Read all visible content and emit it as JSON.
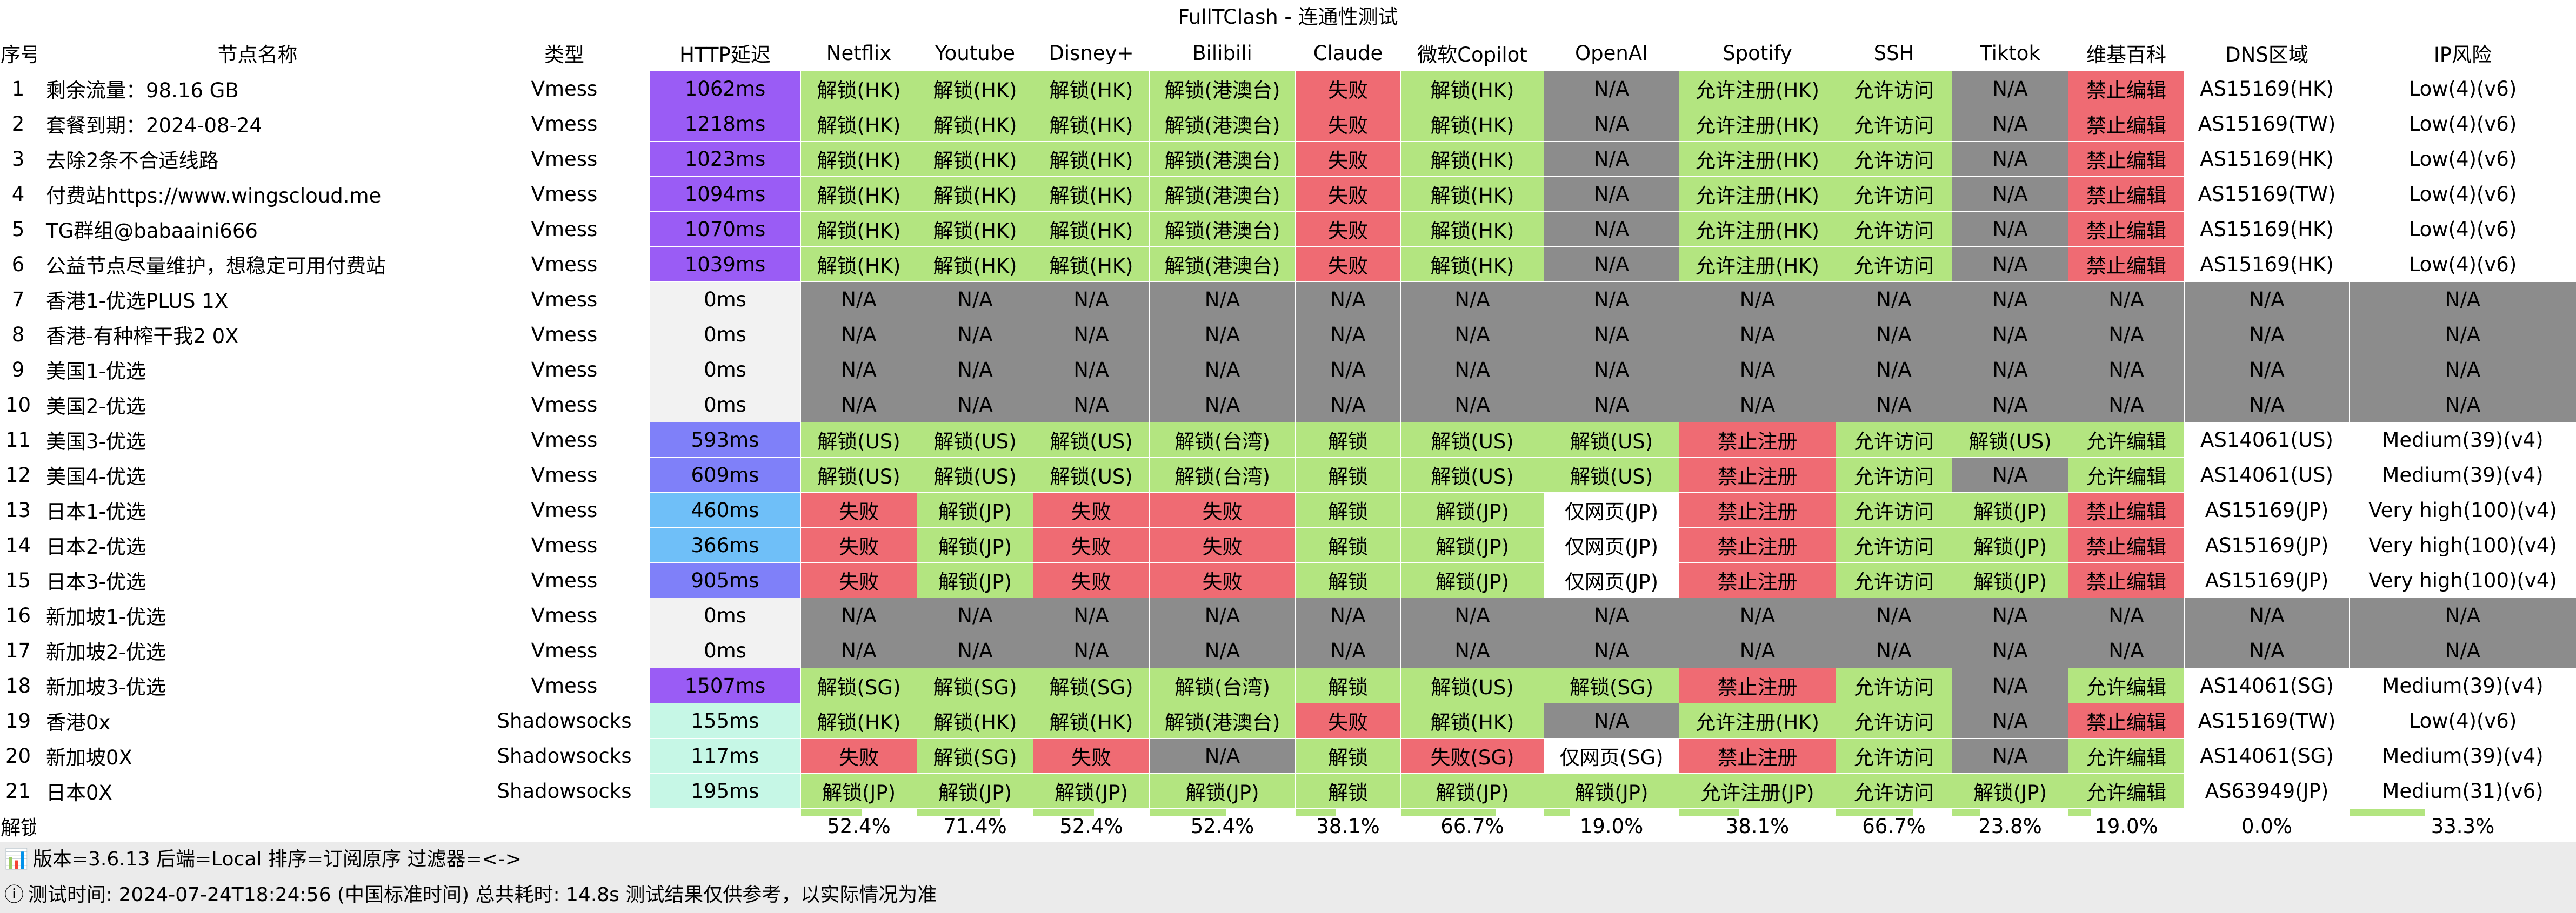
{
  "title": "FullTClash - 连通性测试",
  "headers": [
    "序号",
    "节点名称",
    "类型",
    "HTTP延迟",
    "Netflix",
    "Youtube",
    "Disney+",
    "Bilibili",
    "Claude",
    "微软Copilot",
    "OpenAI",
    "Spotify",
    "SSH",
    "Tiktok",
    "维基百科",
    "DNS区域",
    "IP风险"
  ],
  "rows": [
    [
      "1",
      "剩余流量：98.16 GB",
      "Vmess",
      "1062ms",
      "解锁(HK)",
      "解锁(HK)",
      "解锁(HK)",
      "解锁(港澳台)",
      "失败",
      "解锁(HK)",
      "N/A",
      "允许注册(HK)",
      "允许访问",
      "N/A",
      "禁止编辑",
      "AS15169(HK)",
      "Low(4)(v6)"
    ],
    [
      "2",
      "套餐到期：2024-08-24",
      "Vmess",
      "1218ms",
      "解锁(HK)",
      "解锁(HK)",
      "解锁(HK)",
      "解锁(港澳台)",
      "失败",
      "解锁(HK)",
      "N/A",
      "允许注册(HK)",
      "允许访问",
      "N/A",
      "禁止编辑",
      "AS15169(TW)",
      "Low(4)(v6)"
    ],
    [
      "3",
      "去除2条不合适线路",
      "Vmess",
      "1023ms",
      "解锁(HK)",
      "解锁(HK)",
      "解锁(HK)",
      "解锁(港澳台)",
      "失败",
      "解锁(HK)",
      "N/A",
      "允许注册(HK)",
      "允许访问",
      "N/A",
      "禁止编辑",
      "AS15169(HK)",
      "Low(4)(v6)"
    ],
    [
      "4",
      "付费站https://www.wingscloud.me",
      "Vmess",
      "1094ms",
      "解锁(HK)",
      "解锁(HK)",
      "解锁(HK)",
      "解锁(港澳台)",
      "失败",
      "解锁(HK)",
      "N/A",
      "允许注册(HK)",
      "允许访问",
      "N/A",
      "禁止编辑",
      "AS15169(TW)",
      "Low(4)(v6)"
    ],
    [
      "5",
      "TG群组@babaaini666",
      "Vmess",
      "1070ms",
      "解锁(HK)",
      "解锁(HK)",
      "解锁(HK)",
      "解锁(港澳台)",
      "失败",
      "解锁(HK)",
      "N/A",
      "允许注册(HK)",
      "允许访问",
      "N/A",
      "禁止编辑",
      "AS15169(HK)",
      "Low(4)(v6)"
    ],
    [
      "6",
      "公益节点尽量维护，想稳定可用付费站",
      "Vmess",
      "1039ms",
      "解锁(HK)",
      "解锁(HK)",
      "解锁(HK)",
      "解锁(港澳台)",
      "失败",
      "解锁(HK)",
      "N/A",
      "允许注册(HK)",
      "允许访问",
      "N/A",
      "禁止编辑",
      "AS15169(HK)",
      "Low(4)(v6)"
    ],
    [
      "7",
      "香港1-优选PLUS 1X",
      "Vmess",
      "0ms",
      "N/A",
      "N/A",
      "N/A",
      "N/A",
      "N/A",
      "N/A",
      "N/A",
      "N/A",
      "N/A",
      "N/A",
      "N/A",
      "N/A",
      "N/A"
    ],
    [
      "8",
      "香港-有种榨干我2 0X",
      "Vmess",
      "0ms",
      "N/A",
      "N/A",
      "N/A",
      "N/A",
      "N/A",
      "N/A",
      "N/A",
      "N/A",
      "N/A",
      "N/A",
      "N/A",
      "N/A",
      "N/A"
    ],
    [
      "9",
      "美国1-优选",
      "Vmess",
      "0ms",
      "N/A",
      "N/A",
      "N/A",
      "N/A",
      "N/A",
      "N/A",
      "N/A",
      "N/A",
      "N/A",
      "N/A",
      "N/A",
      "N/A",
      "N/A"
    ],
    [
      "10",
      "美国2-优选",
      "Vmess",
      "0ms",
      "N/A",
      "N/A",
      "N/A",
      "N/A",
      "N/A",
      "N/A",
      "N/A",
      "N/A",
      "N/A",
      "N/A",
      "N/A",
      "N/A",
      "N/A"
    ],
    [
      "11",
      "美国3-优选",
      "Vmess",
      "593ms",
      "解锁(US)",
      "解锁(US)",
      "解锁(US)",
      "解锁(台湾)",
      "解锁",
      "解锁(US)",
      "解锁(US)",
      "禁止注册",
      "允许访问",
      "解锁(US)",
      "允许编辑",
      "AS14061(US)",
      "Medium(39)(v4)"
    ],
    [
      "12",
      "美国4-优选",
      "Vmess",
      "609ms",
      "解锁(US)",
      "解锁(US)",
      "解锁(US)",
      "解锁(台湾)",
      "解锁",
      "解锁(US)",
      "解锁(US)",
      "禁止注册",
      "允许访问",
      "N/A",
      "允许编辑",
      "AS14061(US)",
      "Medium(39)(v4)"
    ],
    [
      "13",
      "日本1-优选",
      "Vmess",
      "460ms",
      "失败",
      "解锁(JP)",
      "失败",
      "失败",
      "解锁",
      "解锁(JP)",
      "仅网页(JP)",
      "禁止注册",
      "允许访问",
      "解锁(JP)",
      "禁止编辑",
      "AS15169(JP)",
      "Very high(100)(v4)"
    ],
    [
      "14",
      "日本2-优选",
      "Vmess",
      "366ms",
      "失败",
      "解锁(JP)",
      "失败",
      "失败",
      "解锁",
      "解锁(JP)",
      "仅网页(JP)",
      "禁止注册",
      "允许访问",
      "解锁(JP)",
      "禁止编辑",
      "AS15169(JP)",
      "Very high(100)(v4)"
    ],
    [
      "15",
      "日本3-优选",
      "Vmess",
      "905ms",
      "失败",
      "解锁(JP)",
      "失败",
      "失败",
      "解锁",
      "解锁(JP)",
      "仅网页(JP)",
      "禁止注册",
      "允许访问",
      "解锁(JP)",
      "禁止编辑",
      "AS15169(JP)",
      "Very high(100)(v4)"
    ],
    [
      "16",
      "新加坡1-优选",
      "Vmess",
      "0ms",
      "N/A",
      "N/A",
      "N/A",
      "N/A",
      "N/A",
      "N/A",
      "N/A",
      "N/A",
      "N/A",
      "N/A",
      "N/A",
      "N/A",
      "N/A"
    ],
    [
      "17",
      "新加坡2-优选",
      "Vmess",
      "0ms",
      "N/A",
      "N/A",
      "N/A",
      "N/A",
      "N/A",
      "N/A",
      "N/A",
      "N/A",
      "N/A",
      "N/A",
      "N/A",
      "N/A",
      "N/A"
    ],
    [
      "18",
      "新加坡3-优选",
      "Vmess",
      "1507ms",
      "解锁(SG)",
      "解锁(SG)",
      "解锁(SG)",
      "解锁(台湾)",
      "解锁",
      "解锁(US)",
      "解锁(SG)",
      "禁止注册",
      "允许访问",
      "N/A",
      "允许编辑",
      "AS14061(SG)",
      "Medium(39)(v4)"
    ],
    [
      "19",
      "香港0x",
      "Shadowsocks",
      "155ms",
      "解锁(HK)",
      "解锁(HK)",
      "解锁(HK)",
      "解锁(港澳台)",
      "失败",
      "解锁(HK)",
      "N/A",
      "允许注册(HK)",
      "允许访问",
      "N/A",
      "禁止编辑",
      "AS15169(TW)",
      "Low(4)(v6)"
    ],
    [
      "20",
      "新加坡0X",
      "Shadowsocks",
      "117ms",
      "失败",
      "解锁(SG)",
      "失败",
      "N/A",
      "解锁",
      "失败(SG)",
      "仅网页(SG)",
      "禁止注册",
      "允许访问",
      "N/A",
      "允许编辑",
      "AS14061(SG)",
      "Medium(39)(v4)"
    ],
    [
      "21",
      "日本0X",
      "Shadowsocks",
      "195ms",
      "解锁(JP)",
      "解锁(JP)",
      "解锁(JP)",
      "解锁(JP)",
      "解锁",
      "解锁(JP)",
      "解锁(JP)",
      "允许注册(JP)",
      "允许访问",
      "解锁(JP)",
      "允许编辑",
      "AS63949(JP)",
      "Medium(31)(v6)"
    ]
  ],
  "summary": {
    "label": "解锁占比:",
    "values": [
      "",
      "",
      "",
      "",
      "52.4%",
      "71.4%",
      "52.4%",
      "52.4%",
      "38.1%",
      "66.7%",
      "19.0%",
      "38.1%",
      "66.7%",
      "23.8%",
      "19.0%",
      "0.0%",
      "33.3%"
    ],
    "fractions": [
      null,
      null,
      null,
      null,
      0.524,
      0.714,
      0.524,
      0.524,
      0.381,
      0.667,
      0.19,
      0.381,
      0.667,
      0.238,
      0.19,
      0.0,
      0.333
    ]
  },
  "footer": {
    "version_icon": "bar-chart-icon",
    "version_line": "版本=3.6.13  后端=Local  排序=订阅原序  过滤器=<->",
    "info_icon": "info-icon",
    "time_line": "测试时间: 2024-07-24T18:24:56 (中国标准时间) 总共耗时: 14.8s 测试结果仅供参考，以实际情况为准"
  },
  "colors": {
    "unlock": "#b3e580",
    "fail": "#ef6b73",
    "na": "#8c8c8c",
    "white": "#ffffff",
    "latency_zero": "#f2f2f2",
    "latency_high": "#9a5cf5",
    "latency_mid": "#7f80f9",
    "latency_low": "#6fbff8",
    "latency_ss": "#c6f7e6",
    "footer_bg": "#ebebeb"
  }
}
